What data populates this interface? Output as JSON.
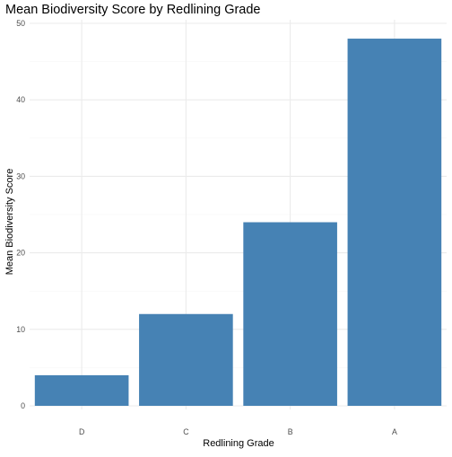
{
  "chart_data": {
    "type": "bar",
    "title": "Mean Biodiversity Score by Redlining Grade",
    "xlabel": "Redlining Grade",
    "ylabel": "Mean Biodiversity Score",
    "categories": [
      "D",
      "C",
      "B",
      "A"
    ],
    "values": [
      4,
      12,
      24,
      48
    ],
    "ylim": [
      0,
      50
    ],
    "yticks": [
      0,
      10,
      20,
      30,
      40,
      50
    ],
    "ytick_labels": [
      "0",
      "10",
      "20",
      "30",
      "40",
      "50"
    ],
    "grid": true,
    "legend": "none",
    "colors": {
      "bar": "#4682b4",
      "grid_major": "#ebebeb",
      "grid_minor": "#f5f5f5",
      "background": "#ffffff"
    }
  }
}
